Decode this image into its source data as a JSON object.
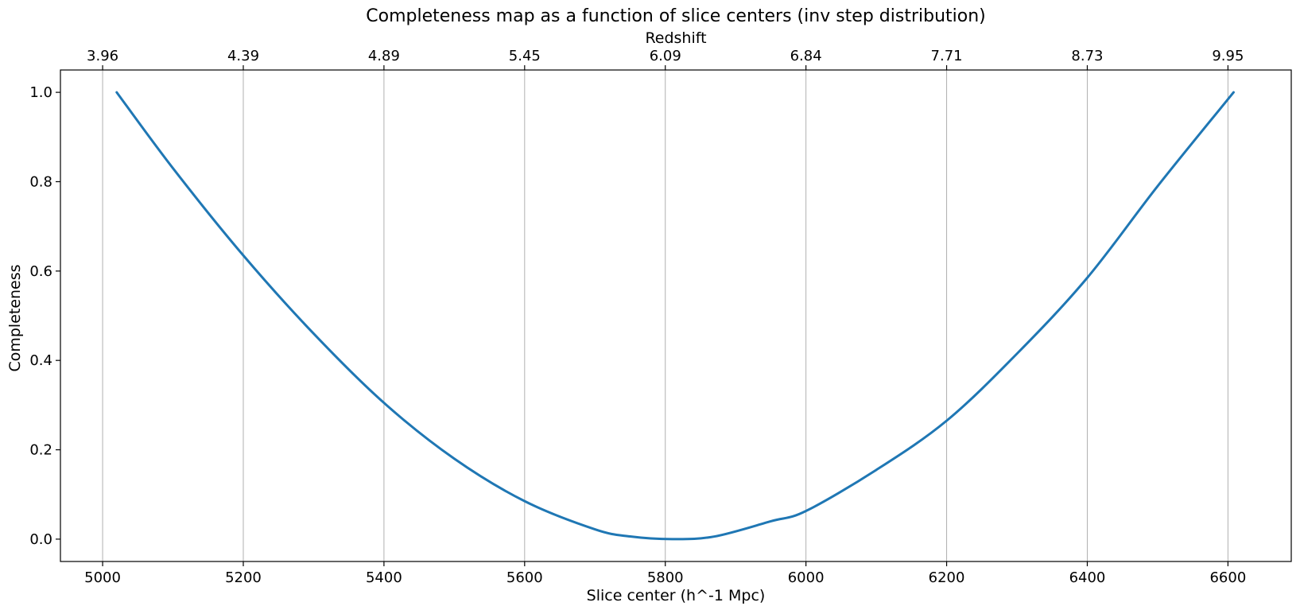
{
  "chart_data": {
    "type": "line",
    "title": "Completeness map as a function of slice centers (inv step distribution)",
    "xlabel": "Slice center (h^-1 Mpc)",
    "ylabel": "Completeness",
    "top_xlabel": "Redshift",
    "xlim": [
      4940,
      6690
    ],
    "ylim": [
      -0.05,
      1.05
    ],
    "xticks": [
      5000,
      5200,
      5400,
      5600,
      5800,
      6000,
      6200,
      6400,
      6600
    ],
    "xtick_labels": [
      "5000",
      "5200",
      "5400",
      "5600",
      "5800",
      "6000",
      "6200",
      "6400",
      "6600"
    ],
    "yticks": [
      0.0,
      0.2,
      0.4,
      0.6,
      0.8,
      1.0
    ],
    "ytick_labels": [
      "0.0",
      "0.2",
      "0.4",
      "0.6",
      "0.8",
      "1.0"
    ],
    "top_xtick_labels": [
      "3.96",
      "4.39",
      "4.89",
      "5.45",
      "6.09",
      "6.84",
      "7.71",
      "8.73",
      "9.95"
    ],
    "grid": "vertical",
    "line_color": "#1f77b4",
    "series": [
      {
        "x": [
          5020,
          5100,
          5200,
          5300,
          5400,
          5500,
          5600,
          5700,
          5750,
          5810,
          5870,
          5950,
          6000,
          6100,
          6200,
          6300,
          6400,
          6500,
          6608
        ],
        "y": [
          1.0,
          0.83,
          0.635,
          0.46,
          0.305,
          0.18,
          0.085,
          0.022,
          0.006,
          0.0,
          0.006,
          0.04,
          0.063,
          0.155,
          0.265,
          0.415,
          0.585,
          0.79,
          1.0
        ]
      }
    ]
  }
}
